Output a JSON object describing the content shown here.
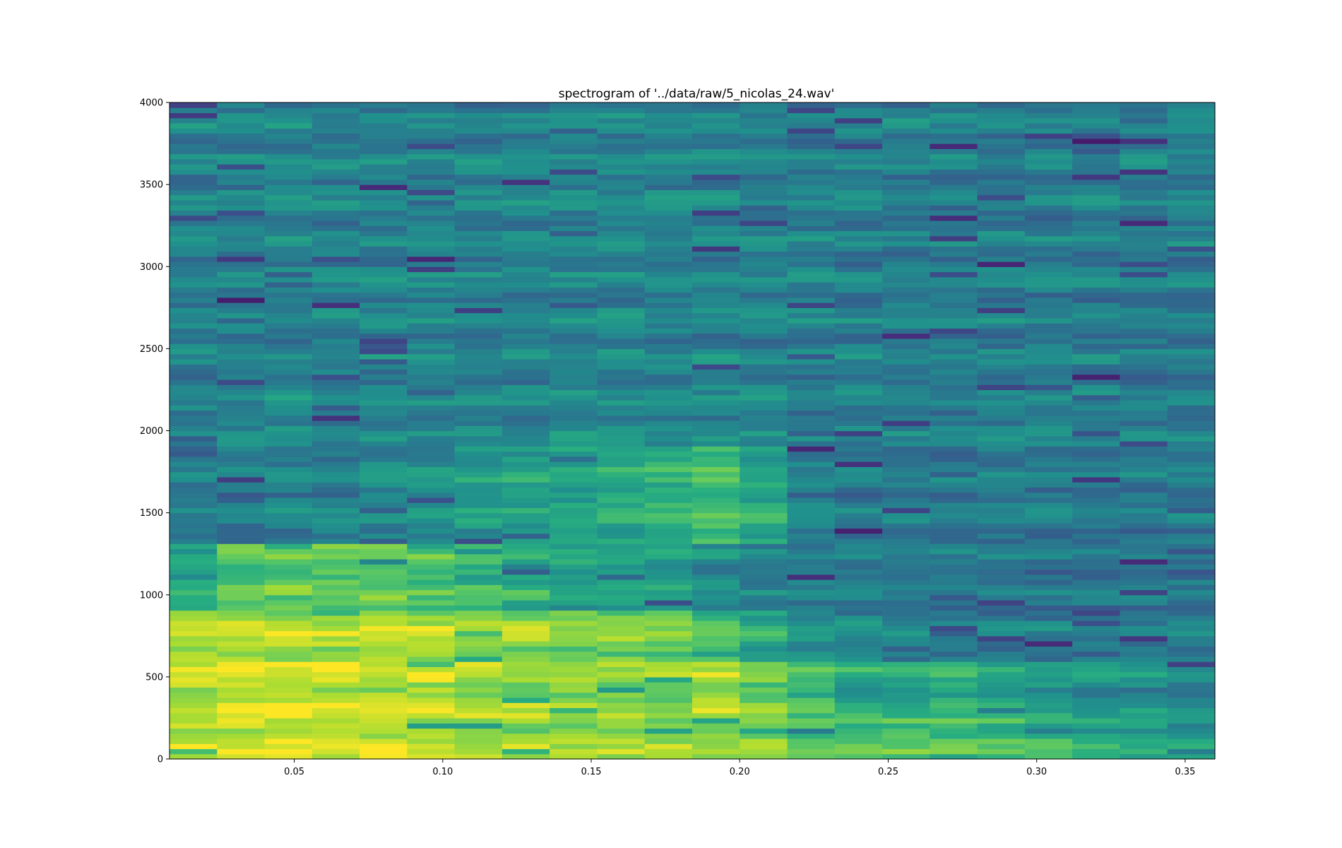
{
  "chart_data": {
    "type": "heatmap",
    "title": "spectrogram of '../data/raw/5_nicolas_24.wav'",
    "xlabel": "",
    "ylabel": "",
    "xlim": [
      0.008,
      0.36
    ],
    "ylim": [
      0,
      4000
    ],
    "x_ticks": [
      "0.05",
      "0.10",
      "0.15",
      "0.20",
      "0.25",
      "0.30",
      "0.35"
    ],
    "y_ticks": [
      "0",
      "500",
      "1000",
      "1500",
      "2000",
      "2500",
      "3000",
      "3500",
      "4000"
    ],
    "colormap": "viridis",
    "time_bins": [
      0.016,
      0.032,
      0.048,
      0.064,
      0.08,
      0.096,
      0.112,
      0.128,
      0.144,
      0.16,
      0.176,
      0.192,
      0.208,
      0.224,
      0.24,
      0.256,
      0.272,
      0.288,
      0.304,
      0.32,
      0.336,
      0.352
    ],
    "frequency_bin_hz": 31.25,
    "frequency_bins": 128,
    "intensity_profile": {
      "note": "relative intensity 0..1 per time bin across frequency bands",
      "bands_hz": [
        [
          0,
          250
        ],
        [
          250,
          600
        ],
        [
          600,
          900
        ],
        [
          900,
          1300
        ],
        [
          1300,
          1900
        ],
        [
          1900,
          4000
        ]
      ],
      "values": [
        [
          0.92,
          0.9,
          0.88,
          0.6,
          0.4,
          0.45
        ],
        [
          0.93,
          0.92,
          0.9,
          0.72,
          0.42,
          0.44
        ],
        [
          0.92,
          0.93,
          0.88,
          0.78,
          0.45,
          0.46
        ],
        [
          0.9,
          0.92,
          0.88,
          0.76,
          0.46,
          0.45
        ],
        [
          0.9,
          0.9,
          0.88,
          0.74,
          0.47,
          0.45
        ],
        [
          0.88,
          0.9,
          0.88,
          0.7,
          0.48,
          0.45
        ],
        [
          0.86,
          0.88,
          0.86,
          0.66,
          0.55,
          0.45
        ],
        [
          0.85,
          0.86,
          0.84,
          0.62,
          0.58,
          0.45
        ],
        [
          0.84,
          0.84,
          0.8,
          0.58,
          0.6,
          0.46
        ],
        [
          0.84,
          0.82,
          0.8,
          0.56,
          0.62,
          0.46
        ],
        [
          0.82,
          0.8,
          0.78,
          0.54,
          0.64,
          0.45
        ],
        [
          0.84,
          0.86,
          0.7,
          0.48,
          0.7,
          0.45
        ],
        [
          0.8,
          0.76,
          0.6,
          0.44,
          0.6,
          0.44
        ],
        [
          0.72,
          0.66,
          0.52,
          0.42,
          0.44,
          0.44
        ],
        [
          0.74,
          0.62,
          0.48,
          0.42,
          0.42,
          0.43
        ],
        [
          0.72,
          0.6,
          0.44,
          0.4,
          0.42,
          0.43
        ],
        [
          0.74,
          0.62,
          0.42,
          0.4,
          0.42,
          0.43
        ],
        [
          0.7,
          0.58,
          0.42,
          0.4,
          0.42,
          0.43
        ],
        [
          0.66,
          0.56,
          0.42,
          0.4,
          0.42,
          0.43
        ],
        [
          0.62,
          0.52,
          0.42,
          0.4,
          0.42,
          0.43
        ],
        [
          0.6,
          0.5,
          0.42,
          0.4,
          0.42,
          0.43
        ],
        [
          0.56,
          0.46,
          0.42,
          0.4,
          0.42,
          0.43
        ]
      ]
    },
    "grid": false,
    "legend": "none"
  }
}
